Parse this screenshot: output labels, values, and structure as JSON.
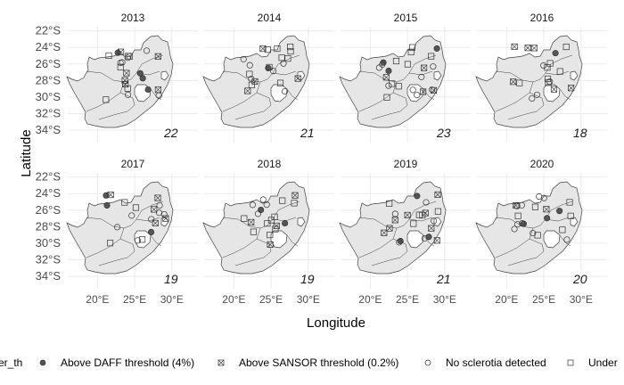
{
  "map": {
    "x_axis_title": "Longitude",
    "y_axis_title": "Latitude",
    "lat_ticks": [
      "22°S",
      "24°S",
      "26°S",
      "28°S",
      "30°S",
      "32°S",
      "34°S"
    ],
    "lat_values": [
      -22,
      -24,
      -26,
      -28,
      -30,
      -32,
      -34
    ],
    "lon_ticks": [
      "20°E",
      "25°E",
      "30°E"
    ],
    "lon_values": [
      20,
      25,
      30
    ],
    "lon_range": [
      16,
      33.5
    ],
    "lat_range": [
      -35.5,
      -21.5
    ],
    "country_fill": "#e6e6e6",
    "border_color": "#404040",
    "grid_color": "#ebebeb",
    "panels": [
      {
        "year": "2013",
        "count": "22"
      },
      {
        "year": "2014",
        "count": "21"
      },
      {
        "year": "2015",
        "count": "23"
      },
      {
        "year": "2016",
        "count": "18"
      },
      {
        "year": "2017",
        "count": "19"
      },
      {
        "year": "2018",
        "count": "19"
      },
      {
        "year": "2019",
        "count": "21"
      },
      {
        "year": "2020",
        "count": "20"
      }
    ]
  },
  "legend": {
    "title": "er_th",
    "items": [
      {
        "label": "Above DAFF threshold (4%)",
        "shape": "filled-circle"
      },
      {
        "label": "Above SANSOR threshold (0.2%)",
        "shape": "crossed-square"
      },
      {
        "label": "No sclerotia detected",
        "shape": "open-circle"
      },
      {
        "label": "Under",
        "shape": "open-square"
      }
    ]
  }
}
